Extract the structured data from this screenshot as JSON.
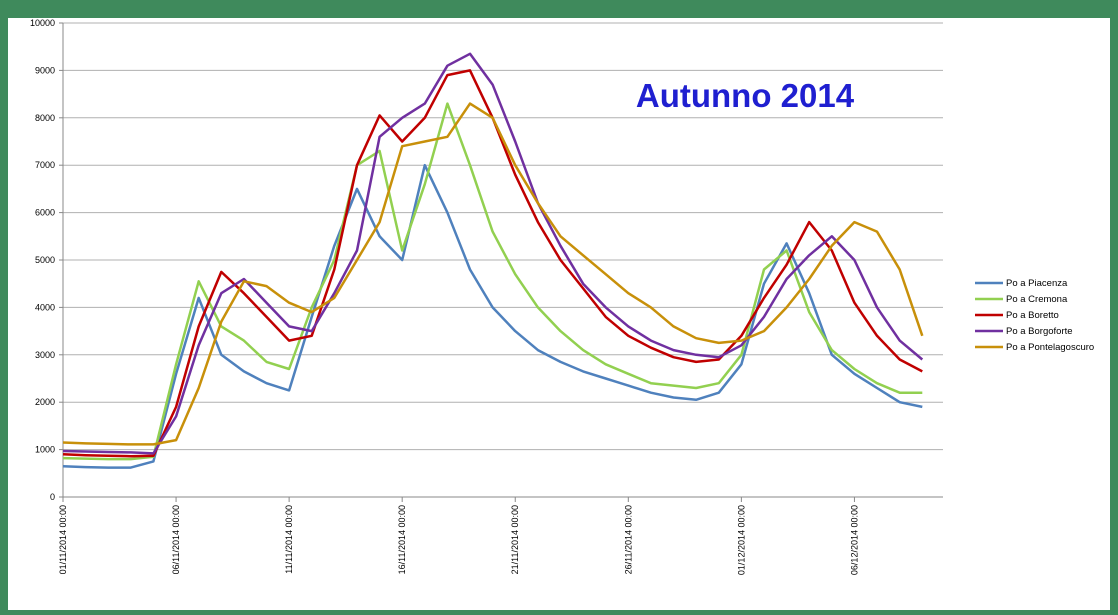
{
  "chart_data": {
    "type": "line",
    "title": "Autunno 2014",
    "x": [
      "01/11/2014 00:00",
      "02/11/2014 00:00",
      "03/11/2014 00:00",
      "04/11/2014 00:00",
      "05/11/2014 00:00",
      "06/11/2014 00:00",
      "07/11/2014 00:00",
      "08/11/2014 00:00",
      "09/11/2014 00:00",
      "10/11/2014 00:00",
      "11/11/2014 00:00",
      "12/11/2014 00:00",
      "13/11/2014 00:00",
      "14/11/2014 00:00",
      "15/11/2014 00:00",
      "16/11/2014 00:00",
      "17/11/2014 00:00",
      "18/11/2014 00:00",
      "19/11/2014 00:00",
      "20/11/2014 00:00",
      "21/11/2014 00:00",
      "22/11/2014 00:00",
      "23/11/2014 00:00",
      "24/11/2014 00:00",
      "25/11/2014 00:00",
      "26/11/2014 00:00",
      "27/11/2014 00:00",
      "28/11/2014 00:00",
      "29/11/2014 00:00",
      "30/11/2014 00:00",
      "01/12/2014 00:00",
      "02/12/2014 00:00",
      "03/12/2014 00:00",
      "04/12/2014 00:00",
      "05/12/2014 00:00",
      "06/12/2014 00:00",
      "07/12/2014 00:00",
      "08/12/2014 00:00",
      "09/12/2014 00:00"
    ],
    "series": [
      {
        "name": "Po a Piacenza",
        "color": "#4f81bd",
        "values": [
          650,
          630,
          620,
          620,
          750,
          2600,
          4200,
          3000,
          2650,
          2400,
          2250,
          3800,
          5300,
          6500,
          5500,
          5000,
          7000,
          6000,
          4800,
          4000,
          3500,
          3100,
          2850,
          2650,
          2500,
          2350,
          2200,
          2100,
          2050,
          2200,
          2800,
          4500,
          5350,
          4300,
          3000,
          2600,
          2300,
          2000,
          1900
        ]
      },
      {
        "name": "Po a Cremona",
        "color": "#92d050",
        "values": [
          820,
          810,
          800,
          800,
          850,
          2800,
          4550,
          3600,
          3300,
          2850,
          2700,
          4000,
          5000,
          7000,
          7300,
          5200,
          6600,
          8300,
          7000,
          5600,
          4700,
          4000,
          3500,
          3100,
          2800,
          2600,
          2400,
          2350,
          2300,
          2400,
          3000,
          4800,
          5200,
          3900,
          3100,
          2700,
          2400,
          2200,
          2200
        ]
      },
      {
        "name": "Po a Boretto",
        "color": "#c00000",
        "values": [
          900,
          880,
          870,
          860,
          870,
          1900,
          3600,
          4750,
          4300,
          3800,
          3300,
          3400,
          4800,
          7000,
          8050,
          7500,
          8000,
          8900,
          9000,
          8000,
          6800,
          5800,
          5000,
          4400,
          3800,
          3400,
          3150,
          2950,
          2850,
          2900,
          3400,
          4200,
          4900,
          5800,
          5200,
          4100,
          3400,
          2900,
          2650
        ]
      },
      {
        "name": "Po a Borgoforte",
        "color": "#7030a0",
        "values": [
          970,
          960,
          950,
          940,
          920,
          1700,
          3200,
          4300,
          4600,
          4100,
          3600,
          3500,
          4300,
          5200,
          7600,
          8000,
          8300,
          9100,
          9350,
          8700,
          7500,
          6200,
          5300,
          4500,
          4000,
          3600,
          3300,
          3100,
          3000,
          2950,
          3200,
          3800,
          4600,
          5100,
          5500,
          5000,
          4000,
          3300,
          2900
        ]
      },
      {
        "name": "Po a Pontelagoscuro",
        "color": "#c8900a",
        "values": [
          1150,
          1130,
          1120,
          1110,
          1110,
          1200,
          2300,
          3700,
          4550,
          4450,
          4100,
          3900,
          4200,
          5000,
          5800,
          7400,
          7500,
          7600,
          8300,
          8000,
          7000,
          6200,
          5500,
          5100,
          4700,
          4300,
          4000,
          3600,
          3350,
          3250,
          3300,
          3500,
          4000,
          4600,
          5300,
          5800,
          5600,
          4800,
          3400
        ]
      }
    ],
    "xlim": [
      "01/11/2014 00:00",
      "09/12/2014 22:00"
    ],
    "xticks": [
      "01/11/2014 00:00",
      "06/11/2014 00:00",
      "11/11/2014 00:00",
      "16/11/2014 00:00",
      "21/11/2014 00:00",
      "26/11/2014 00:00",
      "01/12/2014 00:00",
      "06/12/2014 00:00"
    ],
    "ylim": [
      0,
      10000
    ],
    "yticks": [
      0,
      1000,
      2000,
      3000,
      4000,
      5000,
      6000,
      7000,
      8000,
      9000,
      10000
    ],
    "grid": true,
    "legend": "right"
  }
}
